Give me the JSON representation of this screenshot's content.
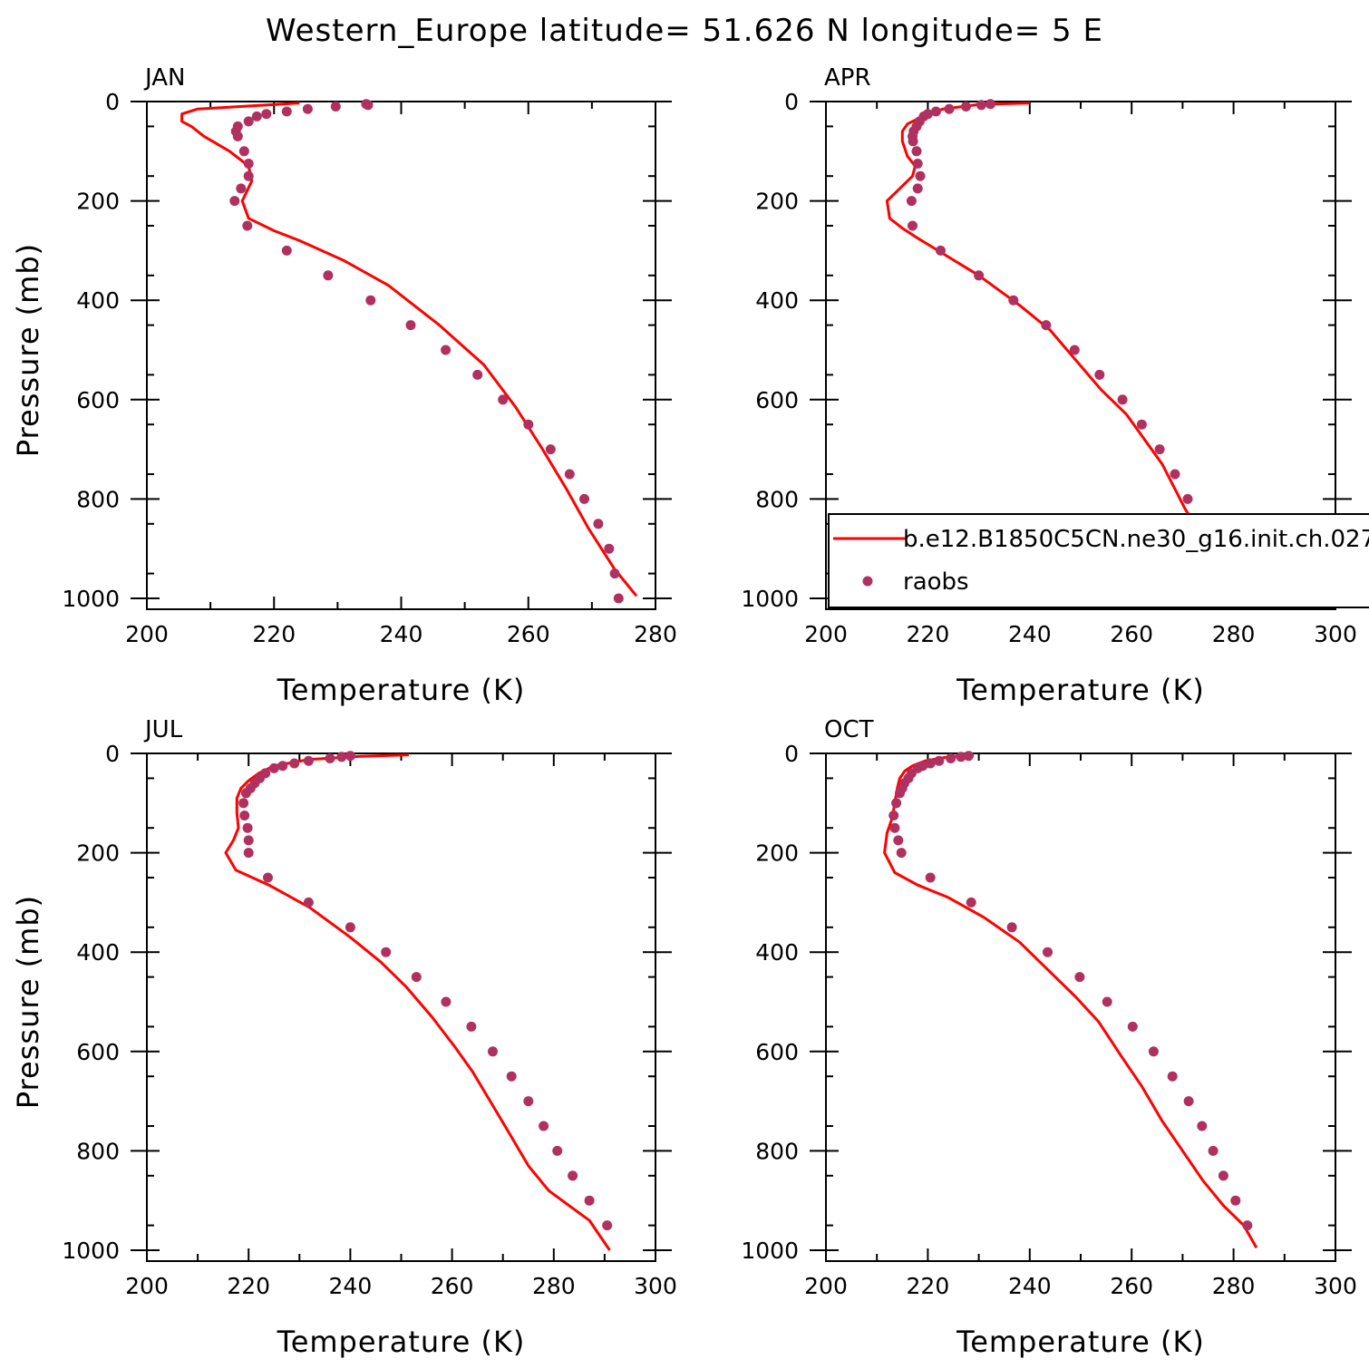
{
  "title": "Western_Europe  latitude= 51.626 N longitude= 5 E",
  "colors": {
    "model_line": "#ff0000",
    "raobs_marker": "#b03060",
    "axes": "#000000"
  },
  "legend": {
    "model_label": "b.e12.B1850C5CN.ne30_g16.init.ch.027",
    "obs_label": "raobs"
  },
  "chart_data": [
    {
      "type": "line",
      "panel_label": "JAN",
      "xlabel": "Temperature (K)",
      "ylabel": "Pressure (mb)",
      "xlim": [
        200,
        280
      ],
      "ylim": [
        1000,
        0
      ],
      "y_inverted": true,
      "xticks": [
        "200",
        "220",
        "240",
        "260",
        "280"
      ],
      "yticks": [
        "0",
        "200",
        "400",
        "600",
        "800",
        "1000"
      ],
      "series": [
        {
          "kind": "line",
          "points": [
            [
              224,
              3
            ],
            [
              219,
              7
            ],
            [
              208,
              15
            ],
            [
              205.5,
              25
            ],
            [
              205.5,
              40
            ],
            [
              207,
              50
            ],
            [
              209,
              70
            ],
            [
              213,
              100
            ],
            [
              216,
              130
            ],
            [
              216.5,
              160
            ],
            [
              215,
              200
            ],
            [
              216,
              235
            ],
            [
              220,
              260
            ],
            [
              224,
              280
            ],
            [
              231,
              320
            ],
            [
              238,
              370
            ],
            [
              246,
              450
            ],
            [
              253,
              530
            ],
            [
              258,
              615
            ],
            [
              262,
              695
            ],
            [
              266,
              780
            ],
            [
              269.5,
              860
            ],
            [
              273.5,
              940
            ],
            [
              277,
              995
            ]
          ]
        },
        {
          "kind": "scatter",
          "points": [
            [
              234.5,
              5
            ],
            [
              234.8,
              7
            ],
            [
              229.7,
              10
            ],
            [
              225.3,
              15
            ],
            [
              222,
              20
            ],
            [
              218.8,
              25
            ],
            [
              217.3,
              30
            ],
            [
              216,
              40
            ],
            [
              214.3,
              50
            ],
            [
              214,
              60
            ],
            [
              214.3,
              70
            ],
            [
              215.3,
              100
            ],
            [
              216,
              125
            ],
            [
              216,
              150
            ],
            [
              214.8,
              175
            ],
            [
              213.8,
              200
            ],
            [
              215.8,
              250
            ],
            [
              222,
              300
            ],
            [
              228.5,
              350
            ],
            [
              235.2,
              400
            ],
            [
              241.5,
              450
            ],
            [
              247,
              500
            ],
            [
              252,
              550
            ],
            [
              256,
              600
            ],
            [
              260,
              650
            ],
            [
              263.5,
              700
            ],
            [
              266.5,
              750
            ],
            [
              268.8,
              800
            ],
            [
              271,
              850
            ],
            [
              272.7,
              900
            ],
            [
              273.6,
              950
            ],
            [
              274.2,
              1000
            ]
          ]
        }
      ]
    },
    {
      "type": "line",
      "panel_label": "APR",
      "xlabel": "Temperature (K)",
      "ylabel": "",
      "xlim": [
        200,
        300
      ],
      "ylim": [
        1000,
        0
      ],
      "y_inverted": true,
      "xticks": [
        "200",
        "220",
        "240",
        "260",
        "280",
        "300"
      ],
      "yticks": [
        "0",
        "200",
        "400",
        "600",
        "800",
        "1000"
      ],
      "series": [
        {
          "kind": "line",
          "points": [
            [
              240,
              3
            ],
            [
              230,
              6
            ],
            [
              223,
              15
            ],
            [
              219,
              30
            ],
            [
              216,
              45
            ],
            [
              215,
              60
            ],
            [
              215,
              80
            ],
            [
              216,
              110
            ],
            [
              217.5,
              130
            ],
            [
              217,
              150
            ],
            [
              215,
              170
            ],
            [
              212,
              200
            ],
            [
              212.5,
              235
            ],
            [
              215,
              255
            ],
            [
              218,
              275
            ],
            [
              222,
              300
            ],
            [
              230,
              350
            ],
            [
              238,
              410
            ],
            [
              244,
              460
            ],
            [
              249,
              520
            ],
            [
              254,
              580
            ],
            [
              259,
              630
            ],
            [
              262.5,
              680
            ],
            [
              266,
              730
            ],
            [
              268.5,
              780
            ],
            [
              270.5,
              820
            ],
            [
              273,
              860
            ],
            [
              276,
              900
            ],
            [
              279.5,
              940
            ],
            [
              281,
              965
            ],
            [
              282,
              995
            ]
          ]
        },
        {
          "kind": "scatter",
          "points": [
            [
              232.3,
              5
            ],
            [
              230.5,
              7
            ],
            [
              227.5,
              10
            ],
            [
              224.2,
              15
            ],
            [
              221.6,
              20
            ],
            [
              220,
              25
            ],
            [
              219.2,
              30
            ],
            [
              218.4,
              40
            ],
            [
              217.8,
              50
            ],
            [
              217.2,
              60
            ],
            [
              217,
              70
            ],
            [
              217.1,
              80
            ],
            [
              217.8,
              100
            ],
            [
              218,
              125
            ],
            [
              218.5,
              150
            ],
            [
              218,
              175
            ],
            [
              216.8,
              200
            ],
            [
              217,
              250
            ],
            [
              222.5,
              300
            ],
            [
              230,
              350
            ],
            [
              236.8,
              400
            ],
            [
              243.2,
              450
            ],
            [
              248.8,
              500
            ],
            [
              253.7,
              550
            ],
            [
              258.2,
              600
            ],
            [
              262,
              650
            ],
            [
              265.5,
              700
            ],
            [
              268.5,
              750
            ],
            [
              271,
              800
            ],
            [
              273.5,
              850
            ],
            [
              276.3,
              900
            ],
            [
              280.5,
              950
            ]
          ]
        }
      ]
    },
    {
      "type": "line",
      "panel_label": "JUL",
      "xlabel": "Temperature (K)",
      "ylabel": "Pressure (mb)",
      "xlim": [
        200,
        300
      ],
      "ylim": [
        1000,
        0
      ],
      "y_inverted": true,
      "xticks": [
        "200",
        "220",
        "240",
        "260",
        "280",
        "300"
      ],
      "yticks": [
        "0",
        "200",
        "400",
        "600",
        "800",
        "1000"
      ],
      "series": [
        {
          "kind": "line",
          "points": [
            [
              251.5,
              3
            ],
            [
              242,
              6
            ],
            [
              232,
              12
            ],
            [
              225,
              25
            ],
            [
              222,
              40
            ],
            [
              220,
              55
            ],
            [
              218.5,
              70
            ],
            [
              217.7,
              90
            ],
            [
              217.7,
              120
            ],
            [
              218,
              150
            ],
            [
              217,
              175
            ],
            [
              215.5,
              200
            ],
            [
              217.5,
              235
            ],
            [
              224,
              265
            ],
            [
              232,
              310
            ],
            [
              240,
              370
            ],
            [
              246,
              420
            ],
            [
              251,
              470
            ],
            [
              256,
              530
            ],
            [
              260.5,
              590
            ],
            [
              264,
              640
            ],
            [
              267.5,
              700
            ],
            [
              271,
              760
            ],
            [
              275,
              830
            ],
            [
              279,
              880
            ],
            [
              283,
              910
            ],
            [
              287,
              940
            ],
            [
              291,
              1000
            ]
          ]
        },
        {
          "kind": "scatter",
          "points": [
            [
              240,
              5
            ],
            [
              238.3,
              7
            ],
            [
              236,
              10
            ],
            [
              231.8,
              15
            ],
            [
              229,
              20
            ],
            [
              226.7,
              25
            ],
            [
              225,
              30
            ],
            [
              223.3,
              40
            ],
            [
              222.2,
              50
            ],
            [
              221.2,
              60
            ],
            [
              220.4,
              70
            ],
            [
              219.5,
              80
            ],
            [
              219,
              100
            ],
            [
              219.2,
              125
            ],
            [
              219.8,
              150
            ],
            [
              220,
              175
            ],
            [
              220,
              200
            ],
            [
              223.8,
              250
            ],
            [
              231.8,
              300
            ],
            [
              240,
              350
            ],
            [
              247,
              400
            ],
            [
              253,
              450
            ],
            [
              258.8,
              500
            ],
            [
              263.8,
              550
            ],
            [
              268,
              600
            ],
            [
              271.7,
              650
            ],
            [
              275,
              700
            ],
            [
              278,
              750
            ],
            [
              280.7,
              800
            ],
            [
              283.7,
              850
            ],
            [
              287,
              900
            ],
            [
              290.5,
              950
            ]
          ]
        }
      ]
    },
    {
      "type": "line",
      "panel_label": "OCT",
      "xlabel": "Temperature (K)",
      "ylabel": "",
      "xlim": [
        200,
        300
      ],
      "ylim": [
        1000,
        0
      ],
      "y_inverted": true,
      "xticks": [
        "200",
        "220",
        "240",
        "260",
        "280",
        "300"
      ],
      "yticks": [
        "0",
        "200",
        "400",
        "600",
        "800",
        "1000"
      ],
      "series": [
        {
          "kind": "line",
          "points": [
            [
              229,
              3
            ],
            [
              224,
              7
            ],
            [
              219.5,
              15
            ],
            [
              217,
              25
            ],
            [
              215.5,
              35
            ],
            [
              214.5,
              50
            ],
            [
              214,
              70
            ],
            [
              213.5,
              100
            ],
            [
              213,
              130
            ],
            [
              212,
              160
            ],
            [
              211.5,
              200
            ],
            [
              213.5,
              240
            ],
            [
              218,
              265
            ],
            [
              224,
              290
            ],
            [
              231,
              330
            ],
            [
              238,
              380
            ],
            [
              244,
              440
            ],
            [
              249,
              490
            ],
            [
              253.5,
              540
            ],
            [
              258,
              610
            ],
            [
              262,
              670
            ],
            [
              266,
              740
            ],
            [
              270,
              800
            ],
            [
              274,
              860
            ],
            [
              278,
              910
            ],
            [
              282,
              950
            ],
            [
              284.5,
              995
            ]
          ]
        },
        {
          "kind": "scatter",
          "points": [
            [
              228,
              5
            ],
            [
              226.5,
              7
            ],
            [
              224.5,
              10
            ],
            [
              222.2,
              15
            ],
            [
              220.5,
              20
            ],
            [
              219,
              25
            ],
            [
              218,
              30
            ],
            [
              216.8,
              40
            ],
            [
              216.2,
              50
            ],
            [
              215.4,
              60
            ],
            [
              215,
              70
            ],
            [
              214.5,
              80
            ],
            [
              213.8,
              100
            ],
            [
              213.3,
              125
            ],
            [
              213.5,
              150
            ],
            [
              214.2,
              175
            ],
            [
              214.8,
              200
            ],
            [
              220.5,
              250
            ],
            [
              228.5,
              300
            ],
            [
              236.5,
              350
            ],
            [
              243.5,
              400
            ],
            [
              249.8,
              450
            ],
            [
              255.2,
              500
            ],
            [
              260.2,
              550
            ],
            [
              264.3,
              600
            ],
            [
              268,
              650
            ],
            [
              271.2,
              700
            ],
            [
              273.8,
              750
            ],
            [
              276,
              800
            ],
            [
              278,
              850
            ],
            [
              280.4,
              900
            ],
            [
              282.7,
              950
            ]
          ]
        }
      ]
    }
  ]
}
